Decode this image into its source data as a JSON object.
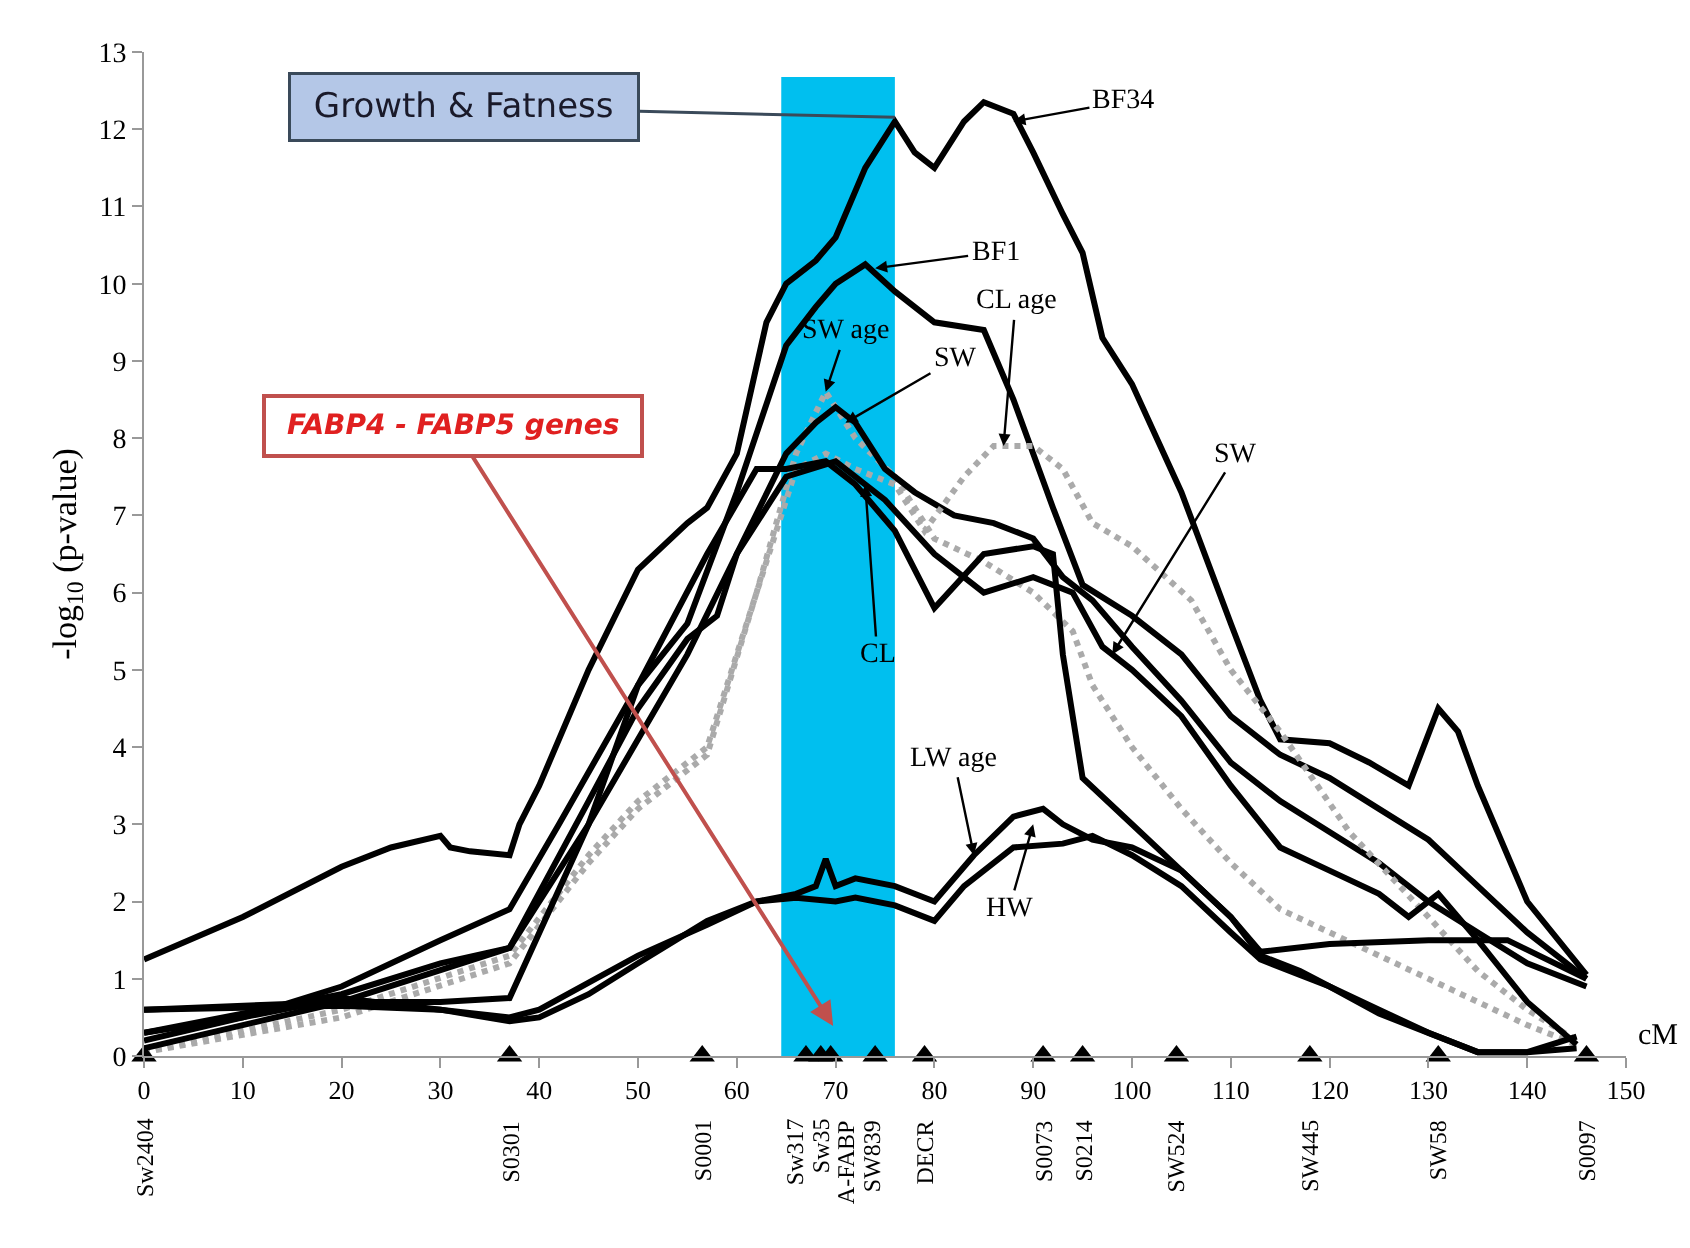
{
  "chart_data": {
    "type": "line",
    "ylabel": "-log$_{10}$ (p-value)",
    "xlabel": "cM",
    "xlim": [
      0,
      150
    ],
    "xticks": [
      0,
      10,
      20,
      30,
      40,
      50,
      60,
      70,
      80,
      90,
      100,
      110,
      120,
      130,
      140,
      150
    ],
    "ylim": [
      0,
      13
    ],
    "yticks": [
      0,
      1,
      2,
      3,
      4,
      5,
      6,
      7,
      8,
      9,
      10,
      11,
      12,
      13
    ],
    "grid": false,
    "marker": "none",
    "line_style": "solid",
    "bands": [
      {
        "axis": "x",
        "from": 64.5,
        "to": 76,
        "label": "Growth & Fatness",
        "color": "#00bfef"
      }
    ],
    "annotations": [
      "FABP4 - FABP5 genes",
      {
        "text": "BF34",
        "x": 88,
        "y": 12.1
      },
      {
        "text": "BF1",
        "x": 74,
        "y": 10.2
      },
      {
        "text": "SW age",
        "x": 69,
        "y": 8.6
      },
      {
        "text": "SW",
        "x": 71,
        "y": 8.2
      },
      {
        "text": "CL age",
        "x": 87,
        "y": 7.9
      },
      {
        "text": "CL",
        "x": 73,
        "y": 7.4
      },
      {
        "text": "SW",
        "x": 98,
        "y": 5.2
      },
      {
        "text": "LW age",
        "x": 84,
        "y": 2.6
      },
      {
        "text": "HW",
        "x": 90,
        "y": 3.0
      }
    ],
    "series": [
      {
        "color": "#000000",
        "x": [
          0,
          10,
          20,
          25,
          30,
          31,
          33,
          37,
          38,
          40,
          45,
          50,
          55,
          57,
          60,
          63,
          65,
          68,
          70,
          73,
          76,
          78,
          80,
          83,
          85,
          88,
          90,
          93,
          95,
          97,
          100,
          105,
          110,
          113,
          115,
          120,
          124,
          128,
          131,
          133,
          135,
          140,
          146
        ],
        "values": [
          1.25,
          1.8,
          2.45,
          2.7,
          2.85,
          2.7,
          2.65,
          2.6,
          3.0,
          3.5,
          5.0,
          6.3,
          6.9,
          7.1,
          7.8,
          9.5,
          10.0,
          10.3,
          10.6,
          11.5,
          12.1,
          11.7,
          11.5,
          12.1,
          12.35,
          12.2,
          11.7,
          10.9,
          10.4,
          9.3,
          8.7,
          7.3,
          5.6,
          4.6,
          4.1,
          4.05,
          3.8,
          3.5,
          4.5,
          4.2,
          3.5,
          2.0,
          1.05
        ]
      },
      {
        "color": "#000000",
        "x": [
          0,
          10,
          20,
          30,
          37,
          42,
          50,
          55,
          60,
          65,
          68,
          70,
          73,
          76,
          80,
          85,
          88,
          92,
          95,
          100,
          105,
          110,
          115,
          120,
          125,
          130,
          135,
          140,
          146
        ],
        "values": [
          0.2,
          0.5,
          0.9,
          1.5,
          1.9,
          3.0,
          4.8,
          5.6,
          7.3,
          9.2,
          9.7,
          10.0,
          10.25,
          9.9,
          9.5,
          9.4,
          8.5,
          7.1,
          6.1,
          5.7,
          5.2,
          4.4,
          3.9,
          3.6,
          3.2,
          2.8,
          2.2,
          1.6,
          1.0
        ]
      },
      {
        "color": "#aaaaaa",
        "line_style": "dotted",
        "x": [
          0,
          20,
          37,
          45,
          50,
          57,
          62,
          66,
          69,
          72,
          76,
          80,
          85,
          90,
          94,
          96,
          100,
          105,
          110,
          115,
          120,
          125,
          130,
          135,
          140,
          145
        ],
        "values": [
          0.05,
          0.6,
          1.3,
          2.6,
          3.3,
          4.0,
          6.0,
          7.8,
          8.6,
          8.0,
          7.5,
          6.7,
          6.4,
          6.0,
          5.5,
          4.8,
          4.0,
          3.2,
          2.5,
          1.9,
          1.6,
          1.3,
          1.0,
          0.7,
          0.4,
          0.15
        ]
      },
      {
        "color": "#000000",
        "x": [
          0,
          20,
          30,
          37,
          45,
          50,
          55,
          58,
          60,
          65,
          68,
          70,
          72,
          75,
          78,
          82,
          86,
          90,
          93,
          96,
          100,
          105,
          110,
          115,
          120,
          125,
          130,
          135,
          140,
          146
        ],
        "values": [
          0.3,
          0.8,
          1.2,
          1.4,
          3.3,
          4.5,
          5.4,
          5.7,
          6.5,
          7.8,
          8.2,
          8.4,
          8.2,
          7.6,
          7.3,
          7.0,
          6.9,
          6.7,
          6.2,
          5.9,
          5.3,
          4.6,
          3.8,
          3.3,
          2.9,
          2.5,
          2.0,
          1.6,
          1.2,
          0.9
        ]
      },
      {
        "color": "#aaaaaa",
        "line_style": "dotted",
        "x": [
          0,
          20,
          37,
          45,
          50,
          57,
          62,
          66,
          69,
          72,
          76,
          79,
          83,
          86,
          90,
          93,
          96,
          100,
          106,
          110,
          115,
          122,
          130,
          135,
          140,
          145
        ],
        "values": [
          0.05,
          0.5,
          1.2,
          2.5,
          3.2,
          3.9,
          6.0,
          7.6,
          7.8,
          7.6,
          7.4,
          6.8,
          7.5,
          7.9,
          7.9,
          7.6,
          6.9,
          6.6,
          5.9,
          5.0,
          4.2,
          2.9,
          1.8,
          1.1,
          0.6,
          0.2
        ]
      },
      {
        "color": "#000000",
        "x": [
          0,
          20,
          30,
          37,
          45,
          50,
          57,
          62,
          65,
          69,
          72,
          76,
          80,
          85,
          90,
          92,
          93,
          95,
          100,
          105,
          110,
          113,
          120,
          130,
          138,
          146
        ],
        "values": [
          0.6,
          0.7,
          0.7,
          0.75,
          3.0,
          4.8,
          6.5,
          7.6,
          7.6,
          7.7,
          7.4,
          6.8,
          5.8,
          6.5,
          6.6,
          6.5,
          5.2,
          3.6,
          3.0,
          2.4,
          1.8,
          1.35,
          1.45,
          1.5,
          1.5,
          1.0
        ]
      },
      {
        "color": "#000000",
        "x": [
          0,
          20,
          37,
          45,
          55,
          60,
          65,
          70,
          75,
          80,
          85,
          90,
          94,
          97,
          100,
          105,
          110,
          115,
          120,
          125,
          128,
          131,
          135,
          140,
          145
        ],
        "values": [
          0.1,
          0.7,
          1.4,
          3.0,
          5.2,
          6.5,
          7.5,
          7.7,
          7.2,
          6.5,
          6.0,
          6.2,
          6.0,
          5.3,
          5.0,
          4.4,
          3.5,
          2.7,
          2.4,
          2.1,
          1.8,
          2.1,
          1.5,
          0.7,
          0.15
        ]
      },
      {
        "color": "#000000",
        "x": [
          0,
          20,
          30,
          37,
          40,
          50,
          57,
          62,
          66,
          68,
          69,
          70,
          72,
          76,
          80,
          84,
          88,
          91,
          93,
          96,
          100,
          105,
          110,
          113,
          117,
          120,
          125,
          130,
          135,
          140,
          145
        ],
        "values": [
          0.6,
          0.65,
          0.6,
          0.5,
          0.6,
          1.3,
          1.7,
          2.0,
          2.1,
          2.2,
          2.55,
          2.2,
          2.3,
          2.2,
          2.0,
          2.6,
          3.1,
          3.2,
          3.0,
          2.8,
          2.7,
          2.4,
          1.8,
          1.3,
          1.1,
          0.9,
          0.6,
          0.3,
          0.05,
          0.05,
          0.1
        ]
      },
      {
        "color": "#000000",
        "x": [
          0,
          10,
          20,
          30,
          37,
          40,
          45,
          50,
          57,
          62,
          66,
          70,
          72,
          76,
          80,
          83,
          88,
          93,
          96,
          100,
          105,
          110,
          113,
          117,
          120,
          125,
          130,
          135,
          140,
          145
        ],
        "values": [
          0.3,
          0.5,
          0.75,
          0.6,
          0.45,
          0.5,
          0.8,
          1.2,
          1.75,
          2.0,
          2.05,
          2.0,
          2.05,
          1.95,
          1.75,
          2.2,
          2.7,
          2.75,
          2.85,
          2.6,
          2.2,
          1.6,
          1.25,
          1.05,
          0.9,
          0.55,
          0.3,
          0.05,
          0.05,
          0.25
        ]
      },
      {
        "type": "scatter",
        "marker": "triangle",
        "color": "#000000",
        "x": [
          0,
          37,
          56.5,
          67,
          68.5,
          69.5,
          74,
          79,
          91,
          95,
          104.5,
          118,
          131,
          146
        ],
        "values": [
          0,
          0,
          0,
          0,
          0,
          0,
          0,
          0,
          0,
          0,
          0,
          0,
          0,
          0
        ],
        "value_labels": [
          "Sw2404",
          "S0301",
          "S0001",
          "Sw317",
          "Sw35",
          "A-FABP",
          "SW839",
          "DECR",
          "S0073",
          "S0214",
          "SW524",
          "SW445",
          "SW58",
          "S0097"
        ]
      }
    ]
  }
}
